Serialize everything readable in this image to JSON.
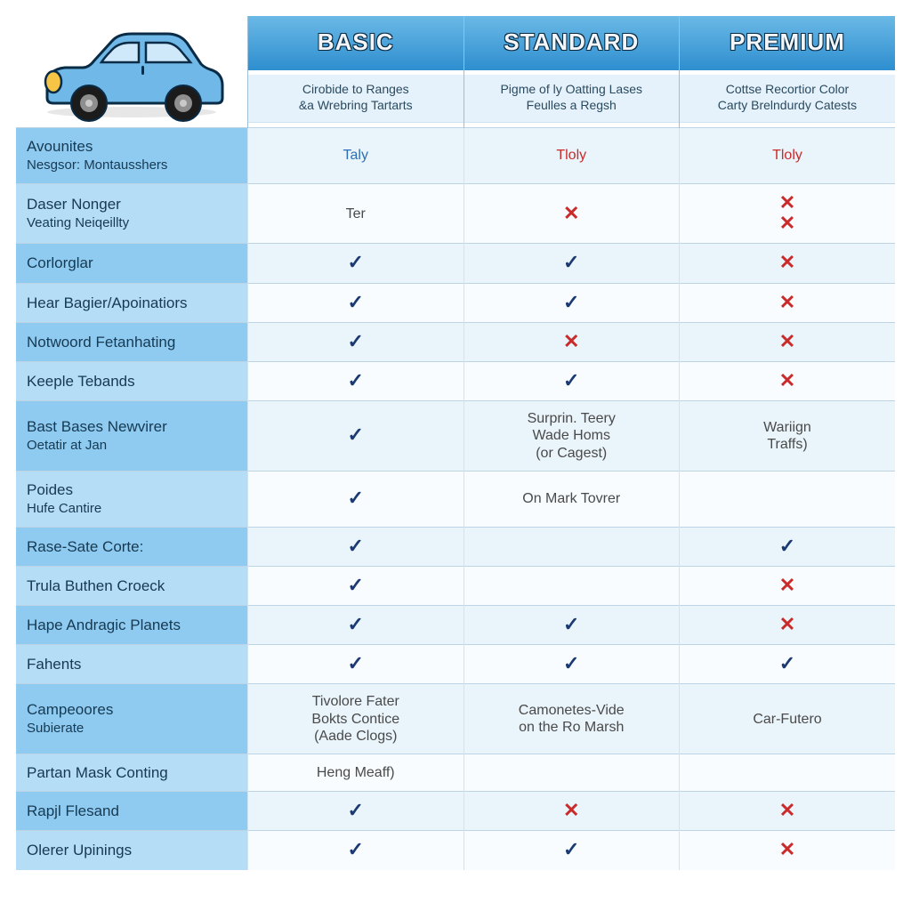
{
  "colors": {
    "header_grad_top": "#6bb9e6",
    "header_grad_bot": "#2e8ecf",
    "header_text": "#f2f6fa",
    "header_outline": "#0b2a40",
    "sub_bg": "#e5f2fb",
    "label_bg_dark": "#8fcaf0",
    "label_bg_light": "#b5ddf5",
    "val_bg_dark": "#eaf4fb",
    "val_bg_light": "#f8fcff",
    "border": "#bcd4e6",
    "check": "#1c3a72",
    "cross": "#c92a2a",
    "car_body": "#6fb8e8",
    "car_outline": "#0a2b45",
    "car_light": "#f6c545",
    "tire": "#1b1b1b",
    "hub": "#8f8f8f"
  },
  "plans": [
    {
      "name": "BASIC",
      "sub1": "Cirobide to Ranges",
      "sub2": "&a Wrebring Tartarts"
    },
    {
      "name": "STANDARD",
      "sub1": "Pigme of ly Oatting Lases",
      "sub2": "Feulles a Regsh"
    },
    {
      "name": "PREMIUM",
      "sub1": "Cottse Recortior Color",
      "sub2": "Carty Brelndurdy Catests"
    }
  ],
  "rows": [
    {
      "l1": "Avounites",
      "l2": "Nesgsor: Montausshers",
      "cells": [
        {
          "t": "text",
          "v": "Taly",
          "cls": "txt-blue"
        },
        {
          "t": "text",
          "v": "Tloly",
          "cls": "txt-red"
        },
        {
          "t": "text",
          "v": "Tloly",
          "cls": "txt-red"
        }
      ]
    },
    {
      "l1": "Daser Nonger",
      "l2": "Veating Neiqeillty",
      "cells": [
        {
          "t": "text",
          "v": "Ter",
          "cls": "txt-norm"
        },
        {
          "t": "cross"
        },
        {
          "t": "cross2"
        }
      ]
    },
    {
      "l1": "Corlorglar",
      "l2": "",
      "cells": [
        {
          "t": "check"
        },
        {
          "t": "check"
        },
        {
          "t": "cross"
        }
      ]
    },
    {
      "l1": "Hear Bagier/Apoinatiors",
      "l2": "",
      "cells": [
        {
          "t": "check"
        },
        {
          "t": "check"
        },
        {
          "t": "cross"
        }
      ]
    },
    {
      "l1": "Notwoord Fetanhating",
      "l2": "",
      "cells": [
        {
          "t": "check"
        },
        {
          "t": "cross"
        },
        {
          "t": "cross"
        }
      ]
    },
    {
      "l1": "Keeple Tebands",
      "l2": "",
      "cells": [
        {
          "t": "check"
        },
        {
          "t": "check"
        },
        {
          "t": "cross"
        }
      ]
    },
    {
      "l1": "Bast Bases Newvirer",
      "l2": "Oetatir at Jan",
      "cells": [
        {
          "t": "check"
        },
        {
          "t": "stack",
          "v": [
            "Surprin. Teery",
            "Wade Homs",
            "(or Cagest)"
          ]
        },
        {
          "t": "stack",
          "v": [
            "Wariign",
            "Traffs)"
          ]
        }
      ]
    },
    {
      "l1": "Poides",
      "l2": "Hufe Cantire",
      "cells": [
        {
          "t": "check"
        },
        {
          "t": "text",
          "v": "On Mark Tovrer",
          "cls": "txt-norm"
        },
        {
          "t": "empty"
        }
      ]
    },
    {
      "l1": "Rase-Sate Corte:",
      "l2": "",
      "cells": [
        {
          "t": "check"
        },
        {
          "t": "empty"
        },
        {
          "t": "check"
        }
      ]
    },
    {
      "l1": "Trula Buthen Croeck",
      "l2": "",
      "cells": [
        {
          "t": "check"
        },
        {
          "t": "empty"
        },
        {
          "t": "cross"
        }
      ]
    },
    {
      "l1": "Hape Andragic Planets",
      "l2": "",
      "cells": [
        {
          "t": "check"
        },
        {
          "t": "check"
        },
        {
          "t": "cross"
        }
      ]
    },
    {
      "l1": "Fahents",
      "l2": "",
      "cells": [
        {
          "t": "check"
        },
        {
          "t": "check"
        },
        {
          "t": "check"
        }
      ]
    },
    {
      "l1": "Campeoores",
      "l2": "Subierate",
      "cells": [
        {
          "t": "stack",
          "v": [
            "Tivolore Fater",
            "Bokts Contice",
            "(Aade Clogs)"
          ]
        },
        {
          "t": "stack",
          "v": [
            "Camonetes-Vide",
            "on the Ro Marsh"
          ]
        },
        {
          "t": "text",
          "v": "Car-Futero",
          "cls": "txt-norm"
        }
      ]
    },
    {
      "l1": "Partan Mask Conting",
      "l2": "",
      "cells": [
        {
          "t": "text",
          "v": "Heng Meaff)",
          "cls": "txt-norm"
        },
        {
          "t": "empty"
        },
        {
          "t": "empty"
        }
      ]
    },
    {
      "l1": "Rapjl Flesand",
      "l2": "",
      "cells": [
        {
          "t": "check"
        },
        {
          "t": "cross"
        },
        {
          "t": "cross"
        }
      ]
    },
    {
      "l1": "Olerer Upinings",
      "l2": "",
      "cells": [
        {
          "t": "check"
        },
        {
          "t": "check"
        },
        {
          "t": "cross"
        }
      ]
    }
  ]
}
